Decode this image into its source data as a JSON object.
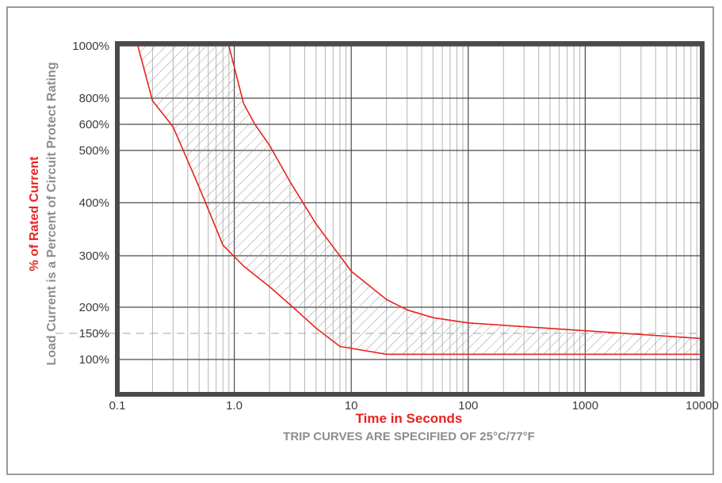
{
  "chart_data": {
    "type": "line",
    "xscale": "log",
    "xlim": [
      0.1,
      10000
    ],
    "ylim": [
      60,
      1000
    ],
    "x_ticks": [
      {
        "value": 0.1,
        "label": "0.1"
      },
      {
        "value": 1,
        "label": "1.0"
      },
      {
        "value": 10,
        "label": "10"
      },
      {
        "value": 100,
        "label": "100"
      },
      {
        "value": 1000,
        "label": "1000"
      },
      {
        "value": 10000,
        "label": "10000"
      }
    ],
    "y_ticks": [
      {
        "value": 1000,
        "label": "1000%"
      },
      {
        "value": 800,
        "label": "800%"
      },
      {
        "value": 600,
        "label": "600%"
      },
      {
        "value": 500,
        "label": "500%"
      },
      {
        "value": 400,
        "label": "400%"
      },
      {
        "value": 300,
        "label": "300%"
      },
      {
        "value": 200,
        "label": "200%"
      },
      {
        "value": 150,
        "label": "150%"
      },
      {
        "value": 100,
        "label": "100%"
      }
    ],
    "xlabel": "Time in Seconds",
    "note": "TRIP CURVES ARE SPECIFIED OF 25°C/77°F",
    "ylabel": "% of Rated Current",
    "ylabel_secondary": "Load Current is a Percent of Circuit Protect Rating",
    "reference_line": {
      "y": 150,
      "style": "dashed"
    },
    "series": [
      {
        "x": [
          0.15,
          0.2,
          0.3,
          0.5,
          0.8,
          1.2,
          2,
          3,
          5,
          8,
          20,
          100,
          1000,
          10000
        ],
        "y": [
          1000,
          780,
          590,
          430,
          320,
          280,
          240,
          205,
          160,
          125,
          110,
          110,
          110,
          110
        ]
      },
      {
        "x": [
          0.9,
          1.2,
          1.5,
          2,
          3,
          5,
          10,
          20,
          30,
          50,
          100,
          1000,
          10000
        ],
        "y": [
          1000,
          760,
          600,
          520,
          440,
          360,
          270,
          215,
          195,
          180,
          170,
          155,
          140
        ]
      }
    ],
    "band": "hatched area between the two curves",
    "colors": {
      "curve": "#e8231f",
      "hatch": "#9a9a9a",
      "grid": "#4a4a4a",
      "minor_grid": "#b5b5b5",
      "axis_frame": "#4a4a4a"
    },
    "grid": true
  }
}
